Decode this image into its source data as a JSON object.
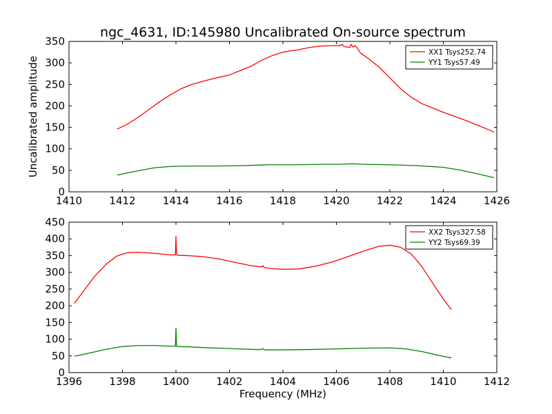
{
  "page": {
    "title": "ngc_4631, ID:145980 Uncalibrated On-source spectrum",
    "ylabel": "Uncalibrated amplitude",
    "xlabel": "Frequency (MHz)"
  },
  "chart_data": [
    {
      "type": "line",
      "title": "ngc_4631, ID:145980 Uncalibrated On-source spectrum",
      "xlabel": "",
      "ylabel": "Uncalibrated amplitude",
      "xlim": [
        1410,
        1426
      ],
      "ylim": [
        0,
        350
      ],
      "xticks": [
        1410,
        1412,
        1414,
        1416,
        1418,
        1420,
        1422,
        1424,
        1426
      ],
      "yticks": [
        0,
        50,
        100,
        150,
        200,
        250,
        300,
        350
      ],
      "legend": "top-right",
      "grid": false,
      "series": [
        {
          "name": "XX1 Tsys252.74",
          "color": "#ff0000",
          "x": [
            1411.8,
            1412.2,
            1412.6,
            1413.0,
            1413.4,
            1413.8,
            1414.2,
            1414.6,
            1415.0,
            1415.5,
            1416.0,
            1416.4,
            1416.8,
            1417.2,
            1417.6,
            1418.0,
            1418.3,
            1418.6,
            1419.0,
            1419.4,
            1419.8,
            1420.1,
            1420.2,
            1420.3,
            1420.5,
            1420.55,
            1420.62,
            1420.7,
            1420.8,
            1420.9,
            1421.2,
            1421.6,
            1422.0,
            1422.4,
            1422.8,
            1423.2,
            1423.6,
            1424.0,
            1424.4,
            1424.8,
            1425.2,
            1425.6,
            1425.9
          ],
          "y": [
            146,
            158,
            174,
            192,
            210,
            226,
            240,
            250,
            257,
            265,
            272,
            282,
            292,
            306,
            317,
            325,
            328,
            331,
            336,
            339,
            340,
            340,
            343,
            338,
            336,
            343,
            337,
            340,
            333,
            323,
            310,
            290,
            265,
            240,
            220,
            205,
            195,
            185,
            176,
            167,
            157,
            147,
            139
          ]
        },
        {
          "name": "YY1 Tsys57.49",
          "color": "#008000",
          "x": [
            1411.8,
            1412.5,
            1413.2,
            1413.8,
            1414.5,
            1415.5,
            1416.5,
            1417.5,
            1418.5,
            1419.5,
            1420.0,
            1420.5,
            1420.7,
            1421.0,
            1422.0,
            1423.0,
            1424.0,
            1424.6,
            1425.2,
            1425.9
          ],
          "y": [
            39,
            48,
            56,
            59,
            60,
            60,
            61,
            63,
            63,
            64,
            64,
            65,
            65,
            64,
            63,
            61,
            57,
            51,
            43,
            33
          ]
        }
      ]
    },
    {
      "type": "line",
      "title": "",
      "xlabel": "Frequency (MHz)",
      "ylabel": "",
      "xlim": [
        1396,
        1412
      ],
      "ylim": [
        0,
        450
      ],
      "xticks": [
        1396,
        1398,
        1400,
        1402,
        1404,
        1406,
        1408,
        1410,
        1412
      ],
      "yticks": [
        0,
        50,
        100,
        150,
        200,
        250,
        300,
        350,
        400,
        450
      ],
      "legend": "top-right",
      "grid": false,
      "series": [
        {
          "name": "XX2 Tsys327.58",
          "color": "#ff0000",
          "x": [
            1396.2,
            1396.6,
            1397.0,
            1397.4,
            1397.8,
            1398.2,
            1398.6,
            1399.0,
            1399.4,
            1399.8,
            1399.98,
            1400.0,
            1400.02,
            1400.05,
            1400.4,
            1401.0,
            1401.6,
            1402.2,
            1402.8,
            1403.2,
            1403.25,
            1403.3,
            1403.6,
            1404.0,
            1404.6,
            1405.2,
            1405.8,
            1406.4,
            1407.0,
            1407.6,
            1408.0,
            1408.4,
            1408.8,
            1409.2,
            1409.6,
            1410.0,
            1410.3
          ],
          "y": [
            207,
            250,
            292,
            325,
            349,
            359,
            360,
            358,
            355,
            352,
            352,
            407,
            355,
            351,
            350,
            347,
            340,
            330,
            320,
            316,
            320,
            314,
            311,
            309,
            310,
            318,
            330,
            346,
            363,
            378,
            381,
            375,
            355,
            317,
            268,
            220,
            188
          ]
        },
        {
          "name": "YY2 Tsys69.39",
          "color": "#008000",
          "x": [
            1396.2,
            1396.8,
            1397.4,
            1398.0,
            1398.6,
            1399.2,
            1399.8,
            1399.98,
            1400.0,
            1400.02,
            1400.05,
            1400.5,
            1401.0,
            1402.0,
            1403.0,
            1403.2,
            1403.25,
            1403.3,
            1404.0,
            1405.0,
            1406.0,
            1407.0,
            1408.0,
            1408.6,
            1409.2,
            1409.8,
            1410.3
          ],
          "y": [
            49,
            59,
            70,
            78,
            81,
            81,
            79,
            79,
            133,
            80,
            78,
            77,
            75,
            72,
            69,
            69,
            72,
            68,
            68,
            69,
            71,
            73,
            74,
            71,
            63,
            52,
            44
          ]
        }
      ]
    }
  ]
}
